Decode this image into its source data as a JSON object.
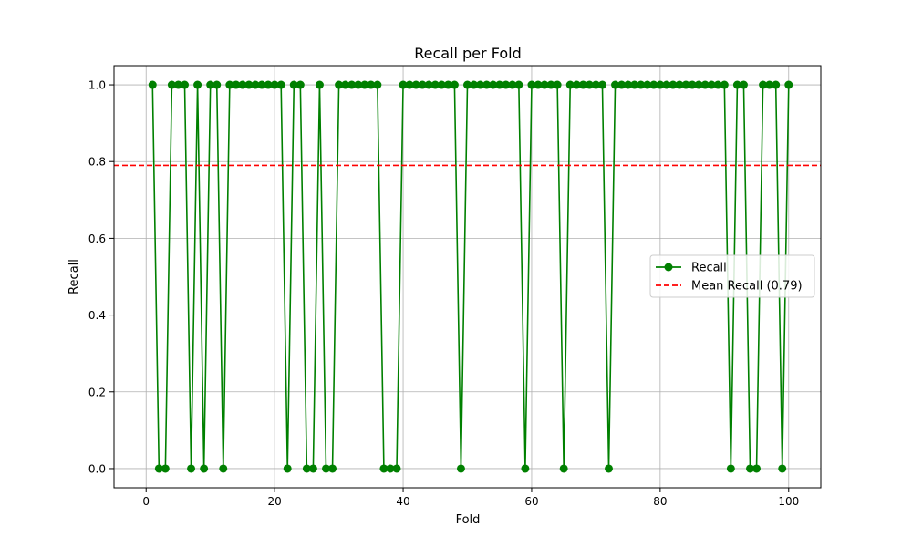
{
  "chart_data": {
    "type": "line",
    "title": "Recall per Fold",
    "xlabel": "Fold",
    "ylabel": "Recall",
    "xlim": [
      -5,
      105
    ],
    "ylim": [
      -0.05,
      1.05
    ],
    "xticks": [
      0,
      20,
      40,
      60,
      80,
      100
    ],
    "yticks": [
      0.0,
      0.2,
      0.4,
      0.6,
      0.8,
      1.0
    ],
    "grid": true,
    "legend_placement": "center-right",
    "x": [
      1,
      2,
      3,
      4,
      5,
      6,
      7,
      8,
      9,
      10,
      11,
      12,
      13,
      14,
      15,
      16,
      17,
      18,
      19,
      20,
      21,
      22,
      23,
      24,
      25,
      26,
      27,
      28,
      29,
      30,
      31,
      32,
      33,
      34,
      35,
      36,
      37,
      38,
      39,
      40,
      41,
      42,
      43,
      44,
      45,
      46,
      47,
      48,
      49,
      50,
      51,
      52,
      53,
      54,
      55,
      56,
      57,
      58,
      59,
      60,
      61,
      62,
      63,
      64,
      65,
      66,
      67,
      68,
      69,
      70,
      71,
      72,
      73,
      74,
      75,
      76,
      77,
      78,
      79,
      80,
      81,
      82,
      83,
      84,
      85,
      86,
      87,
      88,
      89,
      90,
      91,
      92,
      93,
      94,
      95,
      96,
      97,
      98,
      99,
      100
    ],
    "series": [
      {
        "name": "Recall",
        "color": "#008000",
        "marker": "circle",
        "values": [
          1,
          0,
          0,
          1,
          1,
          1,
          0,
          1,
          0,
          1,
          1,
          0,
          1,
          1,
          1,
          1,
          1,
          1,
          1,
          1,
          1,
          0,
          1,
          1,
          0,
          0,
          1,
          0,
          0,
          1,
          1,
          1,
          1,
          1,
          1,
          1,
          0,
          0,
          0,
          1,
          1,
          1,
          1,
          1,
          1,
          1,
          1,
          1,
          0,
          1,
          1,
          1,
          1,
          1,
          1,
          1,
          1,
          1,
          0,
          1,
          1,
          1,
          1,
          1,
          0,
          1,
          1,
          1,
          1,
          1,
          1,
          0,
          1,
          1,
          1,
          1,
          1,
          1,
          1,
          1,
          1,
          1,
          1,
          1,
          1,
          1,
          1,
          1,
          1,
          1,
          0,
          1,
          1,
          0,
          0,
          1,
          1,
          1,
          0,
          1
        ]
      }
    ],
    "reference_lines": [
      {
        "name": "Mean Recall (0.79)",
        "y": 0.79,
        "color": "#ff0000",
        "style": "dashed"
      }
    ]
  }
}
